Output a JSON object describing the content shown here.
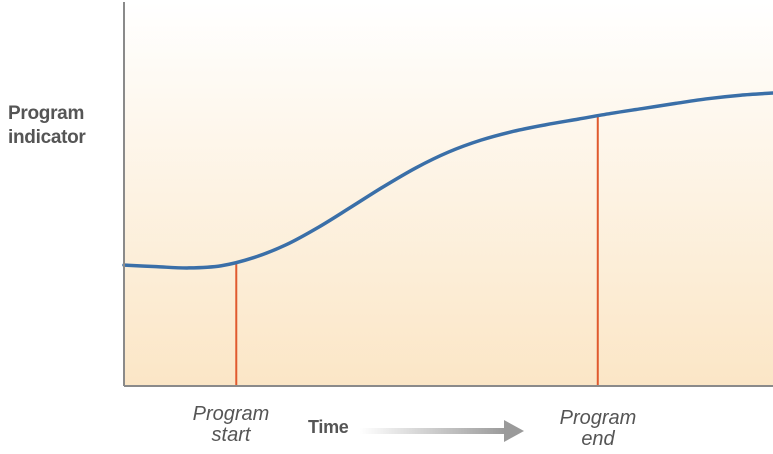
{
  "chart_data": {
    "type": "line",
    "title": "",
    "ylabel_lines": [
      "Program",
      "indicator"
    ],
    "xlabel": "Time",
    "x_axis_arrow": true,
    "xlim": [
      0,
      100
    ],
    "ylim": [
      0,
      100
    ],
    "series": [
      {
        "color": "#3a6fa8",
        "x": [
          0,
          5,
          10,
          15,
          20,
          25,
          30,
          35,
          40,
          45,
          50,
          55,
          60,
          65,
          70,
          75,
          80,
          85,
          90,
          95,
          100
        ],
        "y": [
          38.5,
          38.0,
          37.6,
          38.3,
          40.9,
          45.0,
          50.6,
          57.0,
          63.5,
          69.5,
          74.5,
          78.3,
          81.1,
          83.2,
          85.0,
          86.8,
          88.4,
          90.0,
          91.5,
          92.6,
          93.3
        ]
      }
    ],
    "markers": [
      {
        "x": 17.3,
        "y": 38.8,
        "label_lines": [
          "Program",
          "start"
        ],
        "color": "#e05a2e"
      },
      {
        "x": 73.0,
        "y": 86.3,
        "label_lines": [
          "Program",
          "end"
        ],
        "color": "#e05a2e"
      }
    ],
    "background_gradient": [
      "#ffffff",
      "#fbe6c6"
    ],
    "axis_color": "#8a8a8a",
    "grid": false,
    "ticks": false
  }
}
